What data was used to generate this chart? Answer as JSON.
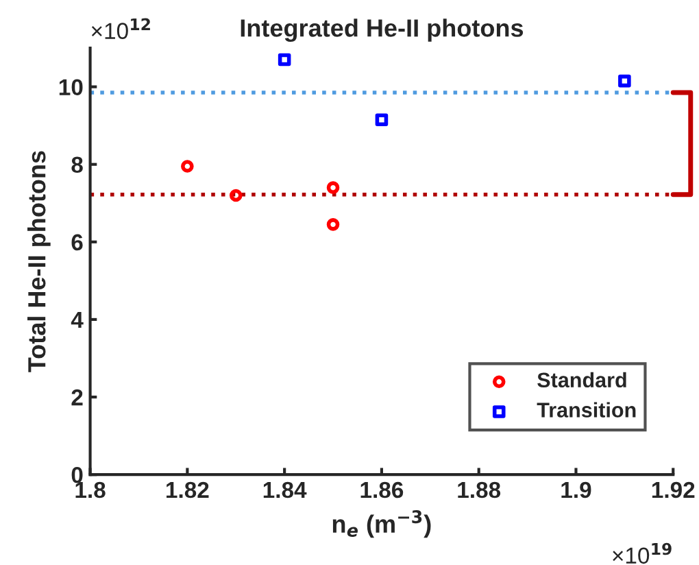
{
  "chart_data": {
    "type": "scatter",
    "title": "Integrated He-II photons",
    "xlabel": "n$_{e}$ (m$^{−3}$)",
    "ylabel": "Total He-II photons",
    "annotations": [
      "×10$^{12}$",
      "×10$^{19}$"
    ],
    "series": [
      {
        "name": "Standard",
        "color": "#ff0000",
        "marker": "circle",
        "x": [
          1.82,
          1.83,
          1.85,
          1.85
        ],
        "values": [
          7.95,
          7.2,
          7.4,
          6.45
        ]
      },
      {
        "name": "Transition",
        "color": "#0000ff",
        "marker": "square",
        "x": [
          1.84,
          1.86,
          1.91
        ],
        "values": [
          10.7,
          9.15,
          10.15
        ]
      }
    ],
    "ref_lines": [
      {
        "axis": "y",
        "value": 9.85,
        "color": "#4f9be0",
        "line_style": "dotted"
      },
      {
        "axis": "y",
        "value": 7.22,
        "color": "#b00000",
        "line_style": "dotted"
      }
    ],
    "xlim": [
      1.8,
      1.92
    ],
    "xticks": [
      1.8,
      1.82,
      1.84,
      1.86,
      1.88,
      1.9,
      1.92
    ],
    "ylim": [
      0,
      11
    ],
    "yticks": [
      0,
      2,
      4,
      6,
      8,
      10
    ],
    "grid": false,
    "legend": "bottom right"
  }
}
